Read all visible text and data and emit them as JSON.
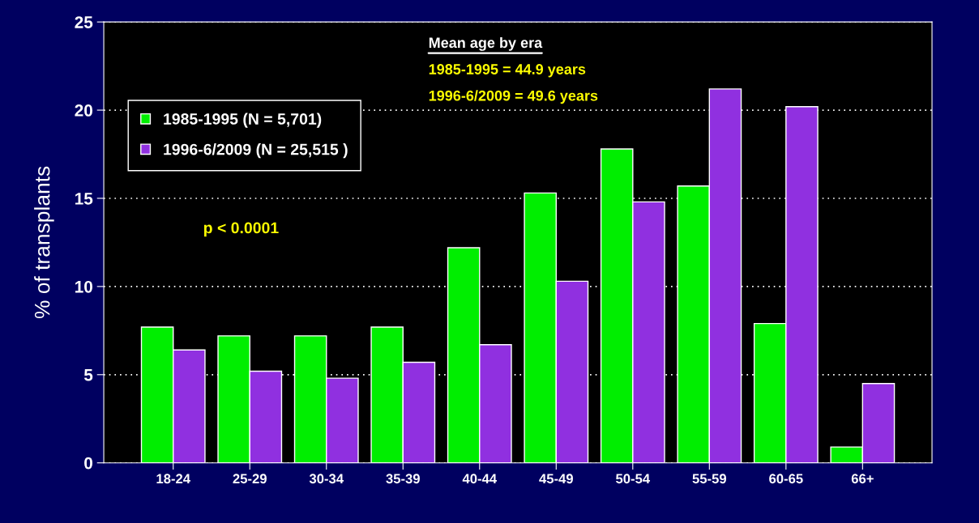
{
  "chart_data": {
    "type": "bar",
    "ylabel": "% of transplants",
    "categories": [
      "18-24",
      "25-29",
      "30-34",
      "35-39",
      "40-44",
      "45-49",
      "50-54",
      "55-59",
      "60-65",
      "66+"
    ],
    "series": [
      {
        "name": "1985-1995 (N = 5,701)",
        "color": "#00ee00",
        "values": [
          7.7,
          7.2,
          7.2,
          7.7,
          12.2,
          15.3,
          17.8,
          15.7,
          7.9,
          0.9
        ]
      },
      {
        "name": "1996-6/2009 (N = 25,515 )",
        "color": "#9030e0",
        "values": [
          6.4,
          5.2,
          4.8,
          5.7,
          6.7,
          10.3,
          14.8,
          21.2,
          20.2,
          4.5
        ]
      }
    ],
    "ylim": [
      0,
      25
    ],
    "yticks": [
      0,
      5,
      10,
      15,
      20,
      25
    ],
    "grid": "y",
    "legend": "top left",
    "annotations": [
      "Mean age by era",
      "1985-1995 = 44.9 years",
      "1996-6/2009 = 49.6 years",
      "p < 0.0001"
    ]
  }
}
